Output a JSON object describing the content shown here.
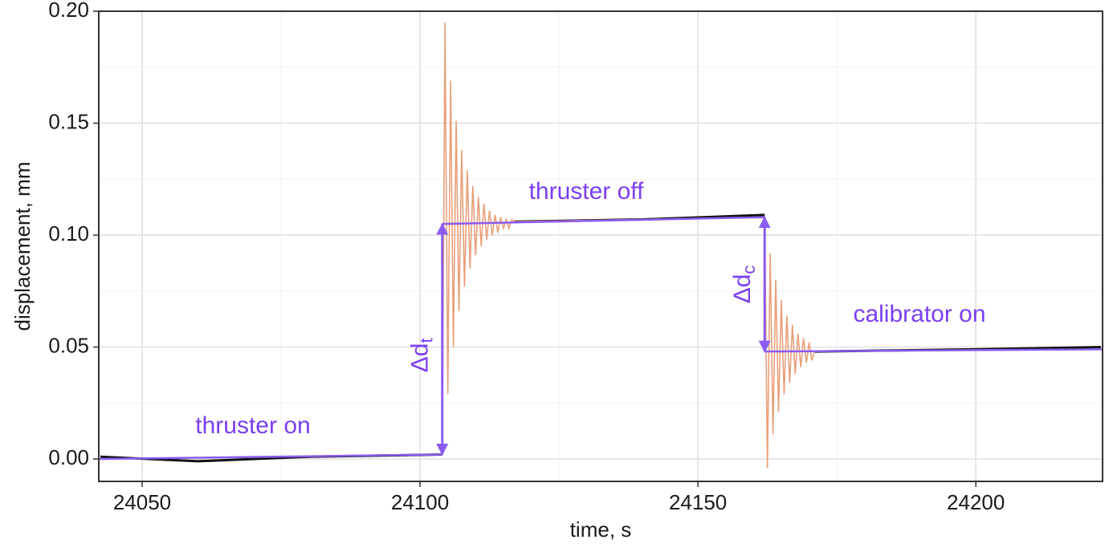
{
  "chart_data": {
    "type": "line",
    "x_label": "time, s",
    "y_label": "displacement, mm",
    "xlim": [
      24042.2,
      24222.8
    ],
    "ylim": [
      -0.01,
      0.2
    ],
    "xticks": [
      24050,
      24100,
      24150,
      24200
    ],
    "yticks": [
      {
        "value": 0,
        "label": "0.00"
      },
      {
        "value": 0.05,
        "label": "0.05"
      },
      {
        "value": 0.1,
        "label": "0.10"
      },
      {
        "value": 0.15,
        "label": "0.15"
      },
      {
        "value": 0.2,
        "label": "0.20"
      }
    ],
    "minor_xticks": [
      24075,
      24125,
      24175
    ],
    "minor_yticks": [
      0.025,
      0.075,
      0.125,
      0.175
    ],
    "grid": true,
    "series": [
      {
        "color": "#111111",
        "x": [
          24042.5,
          24060,
          24080,
          24104,
          24110,
          24117,
          24140,
          24162,
          24166,
          24171,
          24200,
          24222.5
        ],
        "values": [
          0.001,
          -0.001,
          0.001,
          0.002,
          null,
          0.106,
          0.107,
          0.109,
          null,
          0.048,
          0.049,
          0.05
        ]
      },
      {
        "color": "#e8a07a",
        "x": [
          24104,
          24104.5,
          24105,
          24105.5,
          24106,
          24106.5,
          24107,
          24107.5,
          24108,
          24108.5,
          24109,
          24109.5,
          24110,
          24110.5,
          24111,
          24111.5,
          24112,
          24112.5,
          24113,
          24113.5,
          24114,
          24114.5,
          24115,
          24115.5,
          24116,
          24116.5,
          24117,
          24162,
          24162.5,
          24163,
          24163.5,
          24164,
          24164.5,
          24165,
          24165.5,
          24166,
          24166.5,
          24167,
          24167.5,
          24168,
          24168.5,
          24169,
          24169.5,
          24170,
          24170.5,
          24171
        ],
        "values": [
          0.002,
          0.195,
          0.029,
          0.169,
          0.05,
          0.151,
          0.066,
          0.138,
          0.077,
          0.129,
          0.085,
          0.122,
          0.091,
          0.117,
          0.095,
          0.114,
          0.098,
          0.111,
          0.1,
          0.109,
          0.101,
          0.108,
          0.103,
          0.107,
          0.103,
          0.107,
          0.106,
          0.108,
          -0.004,
          0.092,
          0.011,
          0.08,
          0.021,
          0.071,
          0.029,
          0.064,
          0.034,
          0.06,
          0.038,
          0.056,
          0.041,
          0.054,
          0.043,
          0.052,
          0.044,
          0.048
        ]
      },
      {
        "color": "#8b5cf0",
        "x": [
          24042.2,
          24104
        ],
        "values": [
          0.0,
          0.002
        ]
      },
      {
        "color": "#8b5cf0",
        "x": [
          24104,
          24162
        ],
        "values": [
          0.105,
          0.108
        ]
      },
      {
        "color": "#8b5cf0",
        "x": [
          24162,
          24222.8
        ],
        "values": [
          0.048,
          0.049
        ]
      }
    ],
    "arrows": [
      {
        "x": 24104,
        "from": 0.002,
        "to": 0.105,
        "text": "Δd",
        "sub": "t"
      },
      {
        "x": 24162,
        "from": 0.108,
        "to": 0.048,
        "text": "Δd",
        "sub": "c"
      }
    ],
    "annotations": [
      "thruster on",
      "thruster off",
      "calibrator on"
    ]
  }
}
